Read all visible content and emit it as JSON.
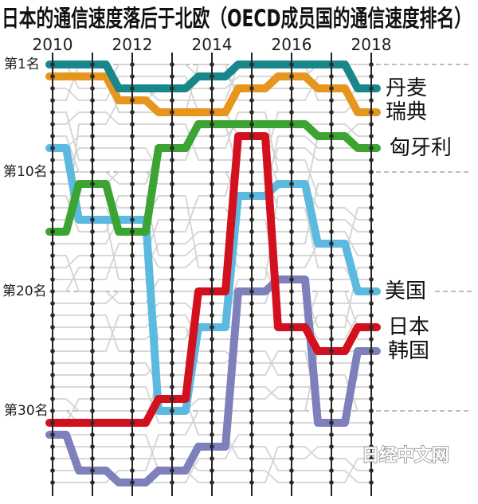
{
  "chart_data": {
    "type": "line",
    "variant": "bump",
    "title": "日本的通信速度落后于北欧（OECD成员国的通信速度排名）",
    "xlabel": "",
    "ylabel": "",
    "x": [
      2010,
      2011,
      2012,
      2013,
      2014,
      2015,
      2016,
      2017,
      2018
    ],
    "x_tick_labels": [
      "2010",
      "2012",
      "2014",
      "2016",
      "2018"
    ],
    "y_ticks": [
      1,
      10,
      20,
      30
    ],
    "y_tick_labels": [
      "第1名",
      "第10名",
      "第20名",
      "第30名"
    ],
    "ylim": [
      36,
      1
    ],
    "y_inverted": true,
    "rank_positions": 36,
    "grid": {
      "style": "dashed",
      "at_ranks": [
        1,
        10,
        20,
        30
      ]
    },
    "legend": {
      "position": "direct labels at right end of lines"
    },
    "background_lines": {
      "color": "#d3d3d3"
    },
    "series": [
      {
        "name": "丹麦",
        "color": "#17878c",
        "values": [
          1,
          1,
          3,
          3,
          2,
          1,
          1,
          1,
          3
        ]
      },
      {
        "name": "瑞典",
        "color": "#e6951d",
        "values": [
          2,
          2,
          4,
          5,
          5,
          3,
          2,
          3,
          5
        ]
      },
      {
        "name": "匈牙利",
        "color": "#3ba433",
        "values": [
          15,
          11,
          15,
          8,
          6,
          6,
          6,
          7,
          8
        ]
      },
      {
        "name": "美国",
        "color": "#5cb9e0",
        "values": [
          8,
          14,
          14,
          30,
          23,
          12,
          11,
          16,
          20
        ]
      },
      {
        "name": "日本",
        "color": "#d2101e",
        "values": [
          31,
          31,
          31,
          29,
          20,
          7,
          23,
          25,
          23
        ]
      },
      {
        "name": "韩国",
        "color": "#7e80bc",
        "values": [
          32,
          35,
          36,
          35,
          33,
          20,
          19,
          31,
          25
        ]
      }
    ]
  },
  "watermark": "日经中文网"
}
